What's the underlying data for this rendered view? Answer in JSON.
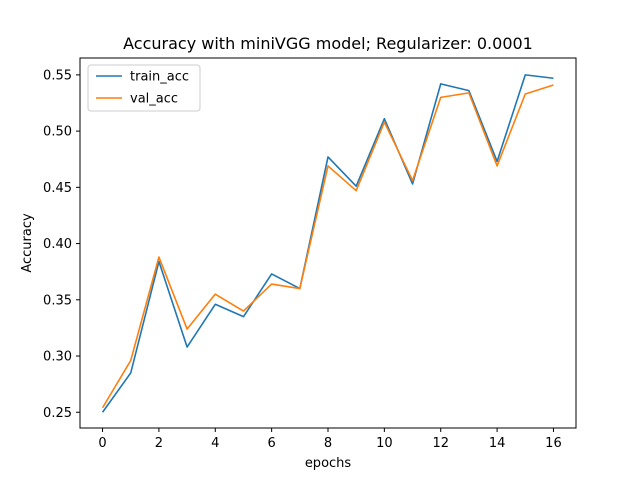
{
  "chart_data": {
    "type": "line",
    "title": "Accuracy with miniVGG model; Regularizer:  0.0001",
    "xlabel": "epochs",
    "ylabel": "Accuracy",
    "xlim": [
      -0.8,
      16.8
    ],
    "ylim": [
      0.236,
      0.565
    ],
    "x_ticks": [
      0,
      2,
      4,
      6,
      8,
      10,
      12,
      14,
      16
    ],
    "y_ticks": [
      0.25,
      0.3,
      0.35,
      0.4,
      0.45,
      0.5,
      0.55
    ],
    "grid": false,
    "legend_position": "top-left",
    "x": [
      0,
      1,
      2,
      3,
      4,
      5,
      6,
      7,
      8,
      9,
      10,
      11,
      12,
      13,
      14,
      15,
      16
    ],
    "series": [
      {
        "name": "train_acc",
        "color": "#1f77b4",
        "values": [
          0.25,
          0.285,
          0.384,
          0.308,
          0.346,
          0.335,
          0.373,
          0.36,
          0.477,
          0.451,
          0.511,
          0.453,
          0.542,
          0.536,
          0.473,
          0.55,
          0.547
        ]
      },
      {
        "name": "val_acc",
        "color": "#ff7f0e",
        "values": [
          0.254,
          0.296,
          0.388,
          0.324,
          0.355,
          0.34,
          0.364,
          0.36,
          0.469,
          0.447,
          0.508,
          0.456,
          0.53,
          0.534,
          0.469,
          0.533,
          0.541
        ]
      }
    ]
  }
}
